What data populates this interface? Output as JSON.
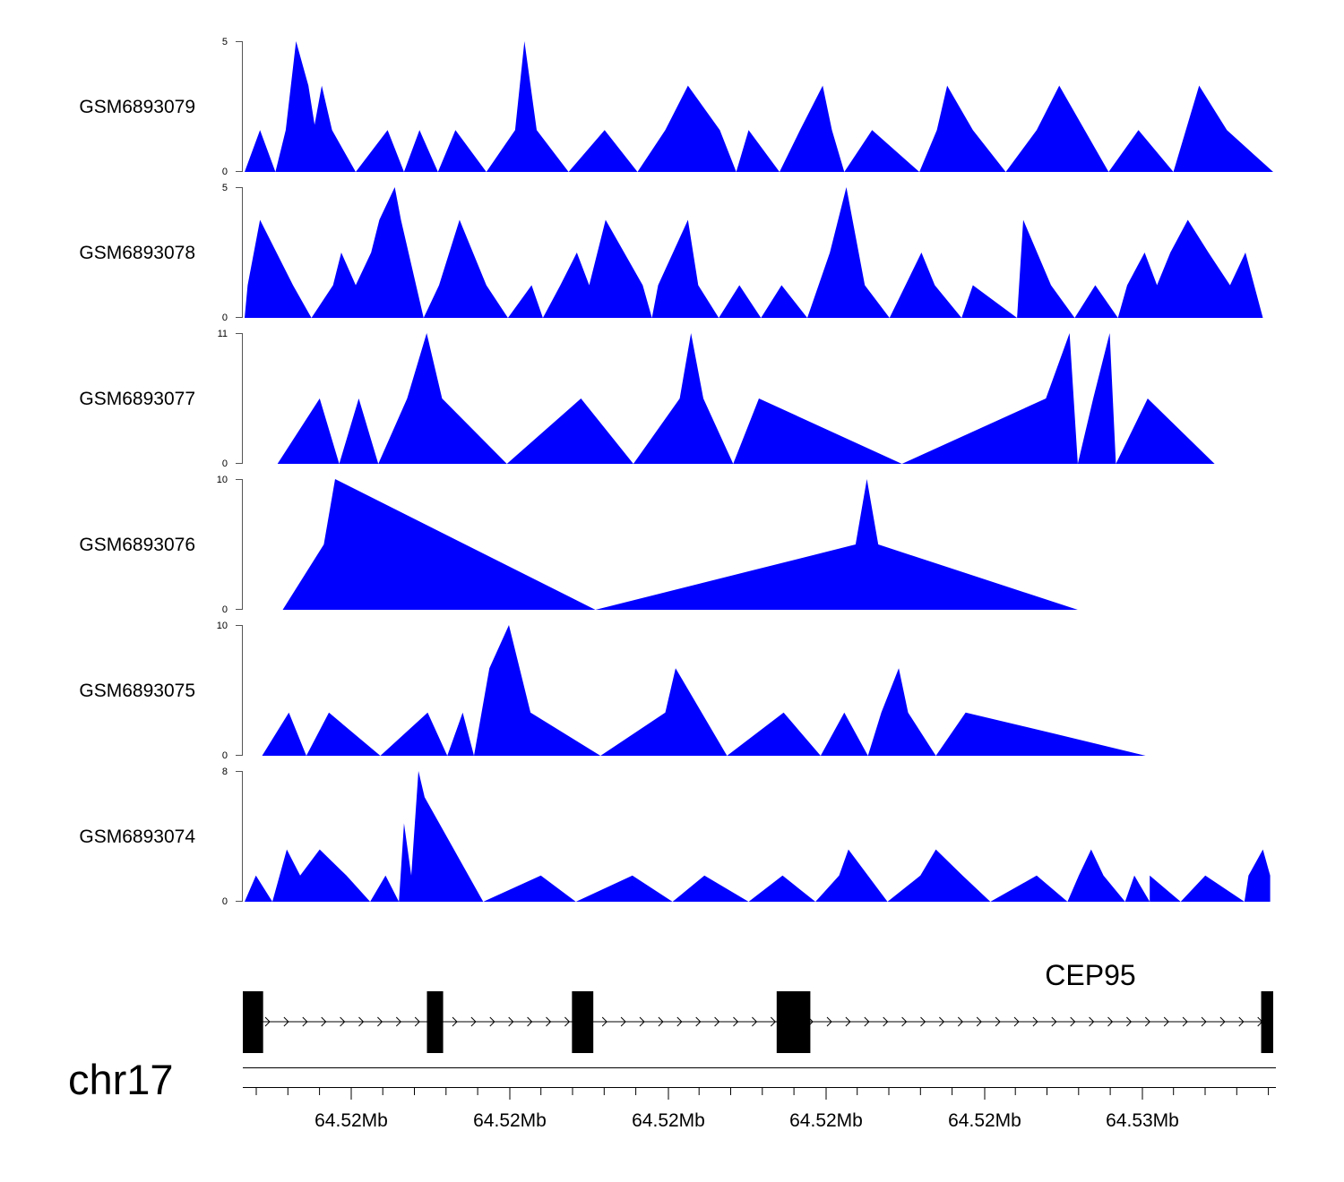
{
  "chart_data": {
    "type": "area",
    "title": "",
    "chromosome": "chr17",
    "gene": {
      "name": "CEP95",
      "strand": "+"
    },
    "x_tick_labels": [
      "64.52Mb",
      "64.52Mb",
      "64.52Mb",
      "64.52Mb",
      "64.52Mb",
      "64.53Mb"
    ],
    "fill_color": "#0000ff",
    "series": [
      {
        "name": "GSM6893079",
        "ylim": [
          0,
          5
        ],
        "y_tick_labels": [
          "0",
          "5"
        ],
        "x": [
          0,
          0.015,
          0.03,
          0.04,
          0.05,
          0.062,
          0.068,
          0.075,
          0.085,
          0.108,
          0.139,
          0.155,
          0.17,
          0.188,
          0.205,
          0.235,
          0.263,
          0.272,
          0.284,
          0.315,
          0.35,
          0.382,
          0.409,
          0.431,
          0.462,
          0.478,
          0.49,
          0.52,
          0.54,
          0.562,
          0.571,
          0.583,
          0.61,
          0.656,
          0.673,
          0.683,
          0.708,
          0.74,
          0.77,
          0.792,
          0.84,
          0.869,
          0.903,
          0.928,
          0.955,
          1.0
        ],
        "y": [
          0,
          1.6,
          0,
          1.6,
          5,
          3.3,
          1.8,
          3.3,
          1.6,
          0,
          1.6,
          0,
          1.6,
          0,
          1.6,
          0,
          1.6,
          5,
          1.6,
          0,
          1.6,
          0,
          1.6,
          3.3,
          1.6,
          0,
          1.6,
          0,
          1.6,
          3.3,
          1.6,
          0,
          1.6,
          0,
          1.6,
          3.3,
          1.6,
          0,
          1.6,
          3.3,
          0,
          1.6,
          0,
          3.3,
          1.6,
          0
        ]
      },
      {
        "name": "GSM6893078",
        "ylim": [
          0,
          5
        ],
        "y_tick_labels": [
          "0",
          "5"
        ],
        "x": [
          0,
          0.003,
          0.015,
          0.047,
          0.065,
          0.086,
          0.094,
          0.108,
          0.123,
          0.131,
          0.146,
          0.152,
          0.174,
          0.189,
          0.209,
          0.235,
          0.256,
          0.279,
          0.29,
          0.307,
          0.323,
          0.335,
          0.351,
          0.387,
          0.396,
          0.402,
          0.431,
          0.441,
          0.461,
          0.481,
          0.502,
          0.522,
          0.547,
          0.569,
          0.585,
          0.603,
          0.627,
          0.658,
          0.671,
          0.697,
          0.708,
          0.751,
          0.757,
          0.784,
          0.807,
          0.827,
          0.849,
          0.858,
          0.875,
          0.887,
          0.9,
          0.917,
          0.937,
          0.958,
          0.973,
          0.99
        ],
        "y": [
          0,
          1.25,
          3.75,
          1.25,
          0,
          1.25,
          2.5,
          1.25,
          2.5,
          3.75,
          5,
          3.75,
          0,
          1.25,
          3.75,
          1.25,
          0,
          1.25,
          0,
          1.25,
          2.5,
          1.25,
          3.75,
          1.25,
          0,
          1.25,
          3.75,
          1.25,
          0,
          1.25,
          0,
          1.25,
          0,
          2.5,
          5,
          1.25,
          0,
          2.5,
          1.25,
          0,
          1.25,
          0,
          3.75,
          1.25,
          0,
          1.25,
          0,
          1.25,
          2.5,
          1.25,
          2.5,
          3.75,
          2.5,
          1.25,
          2.5,
          0
        ]
      },
      {
        "name": "GSM6893077",
        "ylim": [
          0,
          11
        ],
        "y_tick_labels": [
          "0",
          "11"
        ],
        "x": [
          0.032,
          0.073,
          0.092,
          0.111,
          0.13,
          0.158,
          0.177,
          0.192,
          0.255,
          0.327,
          0.378,
          0.423,
          0.434,
          0.446,
          0.475,
          0.5,
          0.639,
          0.779,
          0.802,
          0.81,
          0.825,
          0.841,
          0.847,
          0.878,
          0.943
        ],
        "y": [
          0,
          5.5,
          0,
          5.5,
          0,
          5.5,
          11,
          5.5,
          0,
          5.5,
          0,
          5.5,
          11,
          5.5,
          0,
          5.5,
          0,
          5.5,
          11,
          0,
          5.5,
          11,
          0,
          5.5,
          0
        ]
      },
      {
        "name": "GSM6893076",
        "ylim": [
          0,
          10
        ],
        "y_tick_labels": [
          "0",
          "10"
        ],
        "x": [
          0.037,
          0.077,
          0.088,
          0.341,
          0.594,
          0.605,
          0.616,
          0.81
        ],
        "y": [
          0,
          5,
          10,
          0,
          5,
          10,
          5,
          0
        ]
      },
      {
        "name": "GSM6893075",
        "ylim": [
          0,
          10
        ],
        "y_tick_labels": [
          "0",
          "10"
        ],
        "x": [
          0.017,
          0.043,
          0.06,
          0.082,
          0.132,
          0.178,
          0.197,
          0.212,
          0.223,
          0.238,
          0.257,
          0.278,
          0.346,
          0.409,
          0.419,
          0.469,
          0.524,
          0.56,
          0.583,
          0.606,
          0.619,
          0.636,
          0.645,
          0.672,
          0.701,
          0.787,
          0.876
        ],
        "y": [
          0,
          3.3,
          0,
          3.3,
          0,
          3.3,
          0,
          3.3,
          0,
          6.7,
          10,
          3.3,
          0,
          3.3,
          6.7,
          0,
          3.3,
          0,
          3.3,
          0,
          3.3,
          6.7,
          3.3,
          0,
          3.3,
          1.7,
          0
        ]
      },
      {
        "name": "GSM6893074",
        "ylim": [
          0,
          8
        ],
        "y_tick_labels": [
          "0",
          "8"
        ],
        "x": [
          0,
          0.011,
          0.027,
          0.041,
          0.054,
          0.073,
          0.099,
          0.122,
          0.137,
          0.15,
          0.155,
          0.162,
          0.169,
          0.175,
          0.232,
          0.288,
          0.322,
          0.377,
          0.416,
          0.447,
          0.49,
          0.523,
          0.555,
          0.578,
          0.587,
          0.625,
          0.657,
          0.672,
          0.698,
          0.725,
          0.77,
          0.8,
          0.811,
          0.823,
          0.835,
          0.856,
          0.865,
          0.88,
          0.88,
          0.91,
          0.934,
          0.972,
          0.976,
          0.99,
          0.997
        ],
        "y": [
          0,
          1.6,
          0,
          3.2,
          1.6,
          3.2,
          1.6,
          0,
          1.6,
          0,
          4.8,
          1.6,
          8,
          6.4,
          0,
          1.6,
          0,
          1.6,
          0,
          1.6,
          0,
          1.6,
          0,
          1.6,
          3.2,
          0,
          1.6,
          3.2,
          1.6,
          0,
          1.6,
          0,
          1.6,
          3.2,
          1.6,
          0,
          1.6,
          0,
          1.6,
          0,
          1.6,
          0,
          1.6,
          3.2,
          1.6
        ]
      }
    ],
    "exons": [
      {
        "start": 0.0,
        "end": 0.018
      },
      {
        "start": 0.179,
        "end": 0.193
      },
      {
        "start": 0.32,
        "end": 0.339
      },
      {
        "start": 0.519,
        "end": 0.55
      },
      {
        "start": 0.99,
        "end": 1.0
      }
    ]
  }
}
